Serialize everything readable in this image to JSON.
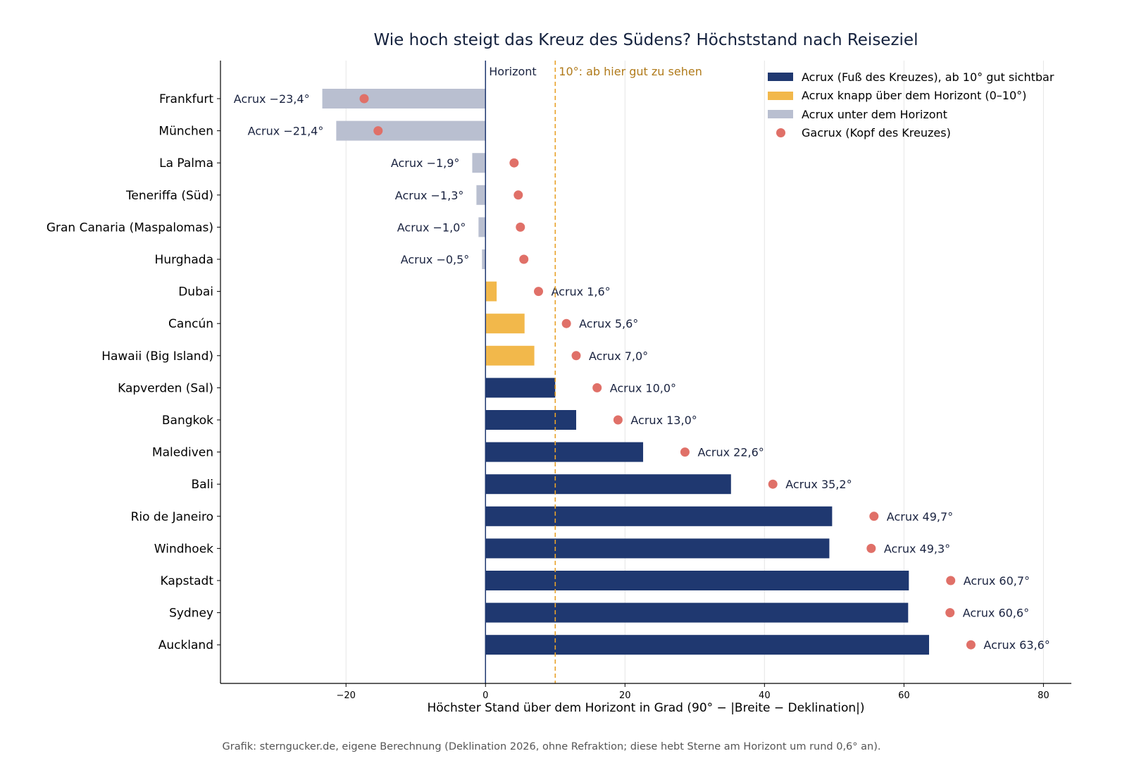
{
  "chart_data": {
    "type": "bar",
    "title": "Wie hoch steigt das Kreuz des Südens? Höchststand nach Reiseziel",
    "xlabel": "Höchster Stand über dem Horizont in Grad (90° − |Breite − Deklination|)",
    "ylabel": "",
    "xlim": [
      -38,
      84
    ],
    "xticks": [
      -20,
      0,
      20,
      40,
      60,
      80
    ],
    "xtick_labels": [
      "−20",
      "0",
      "20",
      "40",
      "60",
      "80"
    ],
    "grid": "vertical",
    "legend_position": "top-right",
    "categories": [
      "Frankfurt",
      "München",
      "La Palma",
      "Teneriffa (Süd)",
      "Gran Canaria (Maspalomas)",
      "Hurghada",
      "Dubai",
      "Cancún",
      "Hawaii (Big Island)",
      "Kapverden (Sal)",
      "Bangkok",
      "Malediven",
      "Bali",
      "Rio de Janeiro",
      "Windhoek",
      "Kapstadt",
      "Sydney",
      "Auckland"
    ],
    "series": [
      {
        "name": "Acrux (Fuß des Kreuzes), ab 10° gut sichtbar",
        "values": [
          -23.4,
          -21.4,
          -1.9,
          -1.3,
          -1.0,
          -0.5,
          1.6,
          5.6,
          7.0,
          10.0,
          13.0,
          22.6,
          35.2,
          49.7,
          49.3,
          60.7,
          60.6,
          63.6
        ]
      },
      {
        "name": "Gacrux (Kopf des Kreuzes)",
        "values": [
          -17.4,
          -15.4,
          4.1,
          4.7,
          5.0,
          5.5,
          7.6,
          11.6,
          13.0,
          16.0,
          19.0,
          28.6,
          41.2,
          55.7,
          55.3,
          66.7,
          66.6,
          69.6
        ]
      }
    ],
    "bar_labels": [
      "Acrux −23,4°",
      "Acrux −21,4°",
      "Acrux −1,9°",
      "Acrux −1,3°",
      "Acrux −1,0°",
      "Acrux −0,5°",
      "Acrux 1,6°",
      "Acrux 5,6°",
      "Acrux 7,0°",
      "Acrux 10,0°",
      "Acrux 13,0°",
      "Acrux 22,6°",
      "Acrux 35,2°",
      "Acrux 49,7°",
      "Acrux 49,3°",
      "Acrux 60,7°",
      "Acrux 60,6°",
      "Acrux 63,6°"
    ],
    "legend": [
      {
        "label": "Acrux (Fuß des Kreuzes), ab 10° gut sichtbar",
        "color": "#1f3870",
        "marker": "bar"
      },
      {
        "label": "Acrux knapp über dem Horizont (0–10°)",
        "color": "#f2b84b",
        "marker": "bar"
      },
      {
        "label": "Acrux unter dem Horizont",
        "color": "#b9bfd0",
        "marker": "bar"
      },
      {
        "label": "Gacrux (Kopf des Kreuzes)",
        "color": "#e07068",
        "marker": "dot"
      }
    ],
    "reference_lines": [
      {
        "x": 0,
        "label": "Horizont",
        "color": "#1f3870"
      },
      {
        "x": 10,
        "label": "10°: ab hier gut zu sehen",
        "color": "#e8a22a"
      }
    ],
    "colors": {
      "visible": "#1f3870",
      "low": "#f2b84b",
      "below": "#b9bfd0",
      "gacrux": "#e07068"
    }
  },
  "source_note": "Grafik: sterngucker.de, eigene Berechnung (Deklination 2026, ohne Refraktion; diese hebt Sterne am Horizont um rund 0,6° an)."
}
